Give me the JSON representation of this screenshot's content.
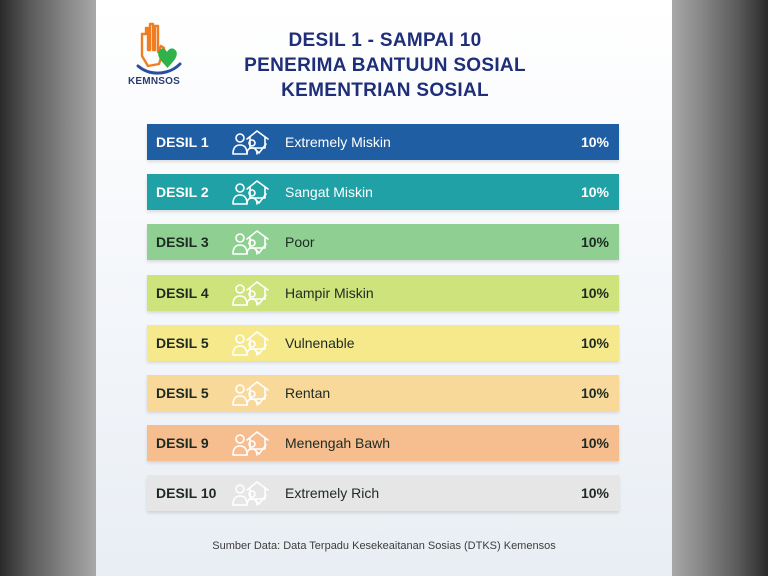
{
  "logo": {
    "text": "KEMNSOS"
  },
  "title": {
    "line1": "DESIL 1 - SAMPAI 10",
    "line2": "PENERIMA BANTUUN SOSIAL",
    "line3": "KEMENTRIAN SOSIAL"
  },
  "rows": [
    {
      "label": "DESIL 1",
      "category": "Extremely Miskin",
      "percent": "10%",
      "bg": "#1f5ea3",
      "text": "#ffffff"
    },
    {
      "label": "DESIL 2",
      "category": "Sangat Miskin",
      "percent": "10%",
      "bg": "#1fa1a6",
      "text": "#ffffff"
    },
    {
      "label": "DESIL 3",
      "category": "Poor",
      "percent": "10%",
      "bg": "#8fd092",
      "text": "#1c2a22"
    },
    {
      "label": "DESIL 4",
      "category": "Hampir Miskin",
      "percent": "10%",
      "bg": "#cfe37c",
      "text": "#1c2a22"
    },
    {
      "label": "DESIL 5",
      "category": "Vulnenable",
      "percent": "10%",
      "bg": "#f6e98c",
      "text": "#1c2a22"
    },
    {
      "label": "DESIL 5",
      "category": "Rentan",
      "percent": "10%",
      "bg": "#f8d99a",
      "text": "#1c2a22"
    },
    {
      "label": "DESIL 9",
      "category": "Menengah Bawh",
      "percent": "10%",
      "bg": "#f6bd8e",
      "text": "#1c2a22"
    },
    {
      "label": "DESIL 10",
      "category": "Extremely Rich",
      "percent": "10%",
      "bg": "#e6e6e6",
      "text": "#1c2a22"
    }
  ],
  "icons": {
    "row_icon": "people-house-check-icon"
  },
  "source": "Sumber Data: Data Terpadu Kesekeaitanan Sosias (DTKS) Kemensos"
}
